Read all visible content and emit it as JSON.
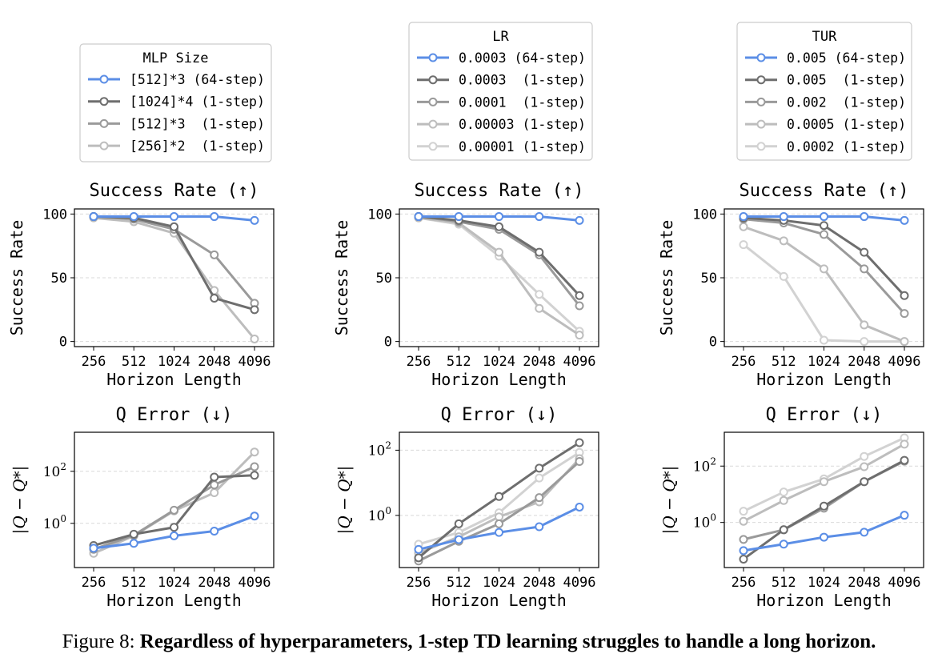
{
  "caption": {
    "prefix": "Figure 8:",
    "text": "Regardless of hyperparameters, 1-step TD learning struggles to handle a long horizon."
  },
  "colors": [
    "#5b8ee6",
    "#6e6e6e",
    "#9a9a9a",
    "#bdbdbd",
    "#d2d2d2"
  ],
  "chart_data": [
    {
      "type": "line",
      "group": "mlp",
      "title": "Success Rate (↑)",
      "xlabel": "Horizon Length",
      "ylabel": "Success Rate",
      "categories": [
        "256",
        "512",
        "1024",
        "2048",
        "4096"
      ],
      "yscale": "linear",
      "ylim": [
        -4,
        104
      ],
      "yticks": [
        0,
        50,
        100
      ],
      "ytick_labels": [
        "0",
        "50",
        "100"
      ],
      "legend_title": "MLP Size",
      "series": [
        {
          "name": "[512]*3 (64-step)",
          "values": [
            98,
            98,
            98,
            98,
            95
          ]
        },
        {
          "name": "[1024]*4 (1-step)",
          "values": [
            98,
            97,
            90,
            34,
            25
          ]
        },
        {
          "name": "[512]*3  (1-step)",
          "values": [
            98,
            96,
            88,
            68,
            30
          ]
        },
        {
          "name": "[256]*2  (1-step)",
          "values": [
            97,
            94,
            85,
            40,
            2
          ]
        }
      ]
    },
    {
      "type": "line",
      "group": "lr",
      "title": "Success Rate (↑)",
      "xlabel": "Horizon Length",
      "ylabel": "Success Rate",
      "categories": [
        "256",
        "512",
        "1024",
        "2048",
        "4096"
      ],
      "yscale": "linear",
      "ylim": [
        -4,
        104
      ],
      "yticks": [
        0,
        50,
        100
      ],
      "ytick_labels": [
        "0",
        "50",
        "100"
      ],
      "legend_title": "LR",
      "series": [
        {
          "name": "0.0003 (64-step)",
          "values": [
            98,
            98,
            98,
            98,
            95
          ]
        },
        {
          "name": "0.0003  (1-step)",
          "values": [
            98,
            95,
            90,
            70,
            36
          ]
        },
        {
          "name": "0.0001  (1-step)",
          "values": [
            98,
            94,
            88,
            68,
            28
          ]
        },
        {
          "name": "0.00003 (1-step)",
          "values": [
            97,
            93,
            70,
            26,
            5
          ]
        },
        {
          "name": "0.00001 (1-step)",
          "values": [
            97,
            92,
            67,
            37,
            8
          ]
        }
      ]
    },
    {
      "type": "line",
      "group": "tur",
      "title": "Success Rate (↑)",
      "xlabel": "Horizon Length",
      "ylabel": "Success Rate",
      "categories": [
        "256",
        "512",
        "1024",
        "2048",
        "4096"
      ],
      "yscale": "linear",
      "ylim": [
        -4,
        104
      ],
      "yticks": [
        0,
        50,
        100
      ],
      "ytick_labels": [
        "0",
        "50",
        "100"
      ],
      "legend_title": "TUR",
      "series": [
        {
          "name": "0.005 (64-step)",
          "values": [
            98,
            98,
            98,
            98,
            95
          ]
        },
        {
          "name": "0.005  (1-step)",
          "values": [
            97,
            95,
            91,
            70,
            36
          ]
        },
        {
          "name": "0.002  (1-step)",
          "values": [
            96,
            93,
            84,
            57,
            22
          ]
        },
        {
          "name": "0.0005 (1-step)",
          "values": [
            90,
            79,
            57,
            13,
            0
          ]
        },
        {
          "name": "0.0002 (1-step)",
          "values": [
            76,
            51,
            1,
            0,
            0
          ]
        }
      ]
    },
    {
      "type": "line",
      "group": "mlp",
      "title": "Q Error (↓)",
      "xlabel": "Horizon Length",
      "ylabel": "|Q − Q*|",
      "categories": [
        "256",
        "512",
        "1024",
        "2048",
        "4096"
      ],
      "yscale": "log",
      "ylim_log10": [
        -1.7,
        3.5
      ],
      "yticks_log10": [
        0,
        2
      ],
      "ytick_labels": [
        "10",
        "10"
      ],
      "ytick_exponents": [
        "0",
        "2"
      ],
      "series": [
        {
          "name": "[512]*3 (64-step)",
          "values": [
            0.11,
            0.17,
            0.33,
            0.5,
            1.9
          ]
        },
        {
          "name": "[1024]*4 (1-step)",
          "values": [
            0.14,
            0.38,
            0.7,
            60,
            70
          ]
        },
        {
          "name": "[512]*3  (1-step)",
          "values": [
            0.1,
            0.35,
            3.2,
            30,
            150
          ]
        },
        {
          "name": "[256]*2  (1-step)",
          "values": [
            0.07,
            0.33,
            3.0,
            15,
            550
          ]
        }
      ]
    },
    {
      "type": "line",
      "group": "lr",
      "title": "Q Error (↓)",
      "xlabel": "Horizon Length",
      "ylabel": "|Q − Q*|",
      "categories": [
        "256",
        "512",
        "1024",
        "2048",
        "4096"
      ],
      "yscale": "log",
      "ylim_log10": [
        -1.6,
        2.55
      ],
      "yticks_log10": [
        0,
        2
      ],
      "ytick_labels": [
        "10",
        "10"
      ],
      "ytick_exponents": [
        "0",
        "2"
      ],
      "series": [
        {
          "name": "0.0003 (64-step)",
          "values": [
            0.09,
            0.18,
            0.3,
            0.45,
            1.8
          ]
        },
        {
          "name": "0.0003  (1-step)",
          "values": [
            0.05,
            0.55,
            3.8,
            28,
            170
          ]
        },
        {
          "name": "0.0001  (1-step)",
          "values": [
            0.04,
            0.16,
            0.55,
            3.5,
            45
          ]
        },
        {
          "name": "0.00003 (1-step)",
          "values": [
            0.07,
            0.22,
            0.9,
            2.6,
            55
          ]
        },
        {
          "name": "0.00001 (1-step)",
          "values": [
            0.13,
            0.3,
            1.2,
            14,
            85
          ]
        }
      ]
    },
    {
      "type": "line",
      "group": "tur",
      "title": "Q Error (↓)",
      "xlabel": "Horizon Length",
      "ylabel": "|Q − Q*|",
      "categories": [
        "256",
        "512",
        "1024",
        "2048",
        "4096"
      ],
      "yscale": "log",
      "ylim_log10": [
        -1.6,
        3.2
      ],
      "yticks_log10": [
        0,
        2
      ],
      "ytick_labels": [
        "10",
        "10"
      ],
      "ytick_exponents": [
        "0",
        "2"
      ],
      "series": [
        {
          "name": "0.005 (64-step)",
          "values": [
            0.1,
            0.17,
            0.3,
            0.45,
            1.8
          ]
        },
        {
          "name": "0.005  (1-step)",
          "values": [
            0.05,
            0.55,
            3.8,
            28,
            160
          ]
        },
        {
          "name": "0.002  (1-step)",
          "values": [
            0.25,
            0.55,
            3.2,
            28,
            150
          ]
        },
        {
          "name": "0.0005 (1-step)",
          "values": [
            1.1,
            6,
            28,
            95,
            600
          ]
        },
        {
          "name": "0.0002 (1-step)",
          "values": [
            2.5,
            12,
            35,
            220,
            1000
          ]
        }
      ]
    }
  ]
}
